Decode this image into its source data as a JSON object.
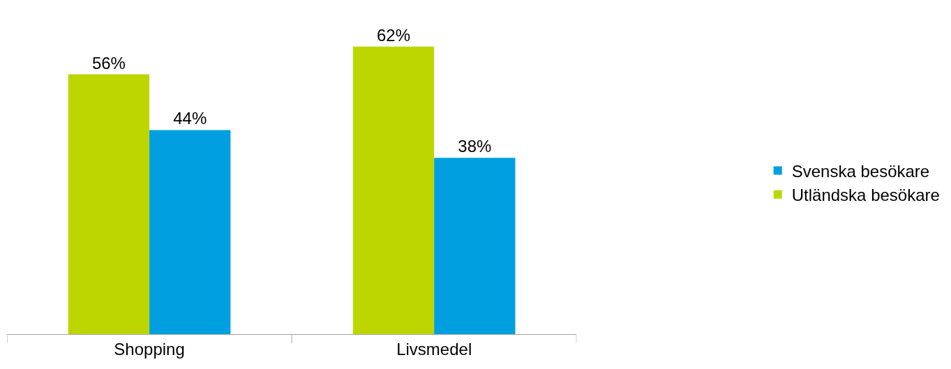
{
  "chart_data": {
    "type": "bar",
    "categories": [
      "Shopping",
      "Livsmedel"
    ],
    "series": [
      {
        "name": "Utländska besökare",
        "color": "#bed600",
        "values": [
          56,
          62
        ],
        "value_labels": [
          "56%",
          "62%"
        ]
      },
      {
        "name": "Svenska besökare",
        "color": "#009fdf",
        "values": [
          44,
          38
        ],
        "value_labels": [
          "44%",
          "38%"
        ]
      }
    ],
    "legend": "right",
    "tick_labels": "x"
  }
}
